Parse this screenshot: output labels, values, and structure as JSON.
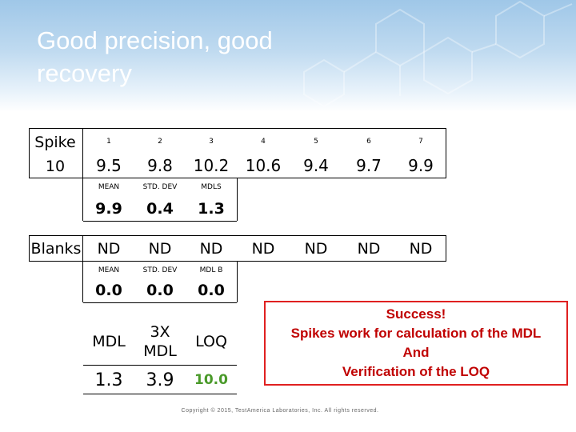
{
  "slide": {
    "title": "Good precision, good recovery",
    "copyright": "Copyright © 2015, TestAmerica Laboratories, Inc. All rights reserved."
  },
  "spike_table": {
    "row_label_top": "Spike",
    "row_label_bottom": "10",
    "columns": [
      "1",
      "2",
      "3",
      "4",
      "5",
      "6",
      "7"
    ],
    "values": [
      "9.5",
      "9.8",
      "10.2",
      "10.6",
      "9.4",
      "9.7",
      "9.9"
    ]
  },
  "spike_stats": {
    "labels": [
      "MEAN",
      "STD. DEV",
      "MDLS"
    ],
    "values": [
      "9.9",
      "0.4",
      "1.3"
    ]
  },
  "blanks_table": {
    "row_label": "Blanks",
    "values": [
      "ND",
      "ND",
      "ND",
      "ND",
      "ND",
      "ND",
      "ND"
    ]
  },
  "blanks_stats": {
    "labels": [
      "MEAN",
      "STD. DEV",
      "MDL B"
    ],
    "values": [
      "0.0",
      "0.0",
      "0.0"
    ]
  },
  "mdl_loq": {
    "headers": [
      "MDL",
      "3X\nMDL",
      "LOQ"
    ],
    "values": [
      "1.3",
      "3.9",
      "10.0"
    ],
    "loq_color": "#4a9a2a"
  },
  "success_box": {
    "lines": [
      "Success!",
      "Spikes work for calculation of the MDL",
      "And",
      "Verification of the LOQ"
    ],
    "color": "#c00000",
    "border_color": "#e02020"
  }
}
